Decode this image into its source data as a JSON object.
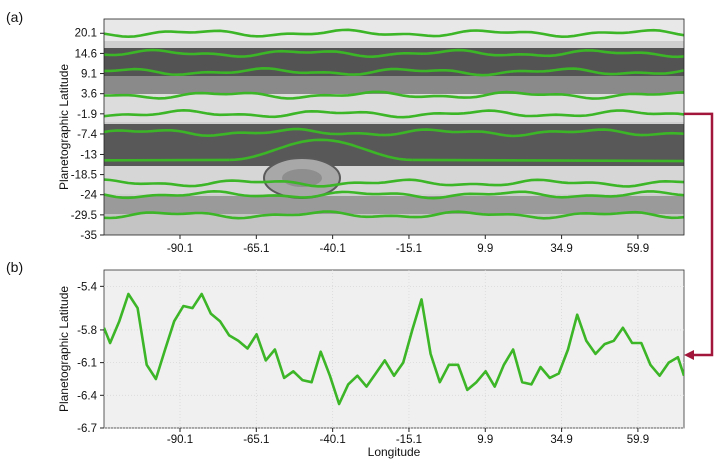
{
  "panel_labels": {
    "a": "(a)",
    "b": "(b)"
  },
  "colors": {
    "trace": "#3cb527",
    "connector": "#a1163a",
    "panel_b_bg": "#f0f0f0",
    "grid": "#d8d8d8"
  },
  "chart_data": [
    {
      "type": "image",
      "panel": "(a)",
      "description_visible": "Grayscale cylindrical map of Jupiter cloud bands with green traced latitude contours",
      "ylabel": "Planetographic Latitude",
      "xlabel": "",
      "yticks": [
        "20.1",
        "14.6",
        "9.1",
        "3.6",
        "-1.9",
        "-7.4",
        "-13",
        "-18.5",
        "-24",
        "-29.5",
        "-35"
      ],
      "xticks": [
        "-90.1",
        "-65.1",
        "-40.1",
        "-15.1",
        "9.9",
        "34.9",
        "59.9"
      ],
      "xlim": [
        -115,
        75
      ],
      "ylim": [
        -35,
        24
      ],
      "contour_latitudes": [
        20.1,
        14.6,
        9.6,
        3.2,
        -1.9,
        -7.0,
        -20.8,
        -24.0,
        -29.5
      ],
      "red_spot_center": {
        "lon": -44,
        "lat": -19.5
      }
    },
    {
      "type": "line",
      "panel": "(b)",
      "ylabel": "Planetographic Latitude",
      "xlabel": "Longitude",
      "yticks": [
        "-5.4",
        "-5.8",
        "-6.1",
        "-6.4",
        "-6.7"
      ],
      "xticks": [
        "-90.1",
        "-65.1",
        "-40.1",
        "-15.1",
        "9.9",
        "34.9",
        "59.9"
      ],
      "xlim": [
        -115,
        75
      ],
      "ylim": [
        -6.7,
        -5.25
      ],
      "grid": true,
      "series": [
        {
          "x": [
            -115,
            -113,
            -110,
            -107,
            -104,
            -101,
            -98,
            -95,
            -92,
            -89,
            -86,
            -83,
            -80,
            -77,
            -74,
            -71,
            -68,
            -65,
            -62,
            -59,
            -56,
            -53,
            -50,
            -47,
            -44,
            -41,
            -38,
            -35,
            -32,
            -29,
            -26,
            -23,
            -20,
            -17,
            -14,
            -11,
            -8,
            -5,
            -2,
            1,
            4,
            7,
            10,
            13,
            16,
            19,
            22,
            25,
            28,
            31,
            34,
            37,
            40,
            43,
            46,
            49,
            52,
            55,
            58,
            61,
            64,
            67,
            70,
            73,
            75
          ],
          "y": [
            -5.78,
            -5.92,
            -5.72,
            -5.47,
            -5.6,
            -6.12,
            -6.25,
            -5.98,
            -5.72,
            -5.58,
            -5.6,
            -5.47,
            -5.65,
            -5.72,
            -5.85,
            -5.9,
            -5.97,
            -5.84,
            -6.08,
            -5.98,
            -6.24,
            -6.18,
            -6.26,
            -6.28,
            -6.0,
            -6.22,
            -6.48,
            -6.3,
            -6.22,
            -6.32,
            -6.2,
            -6.08,
            -6.22,
            -6.1,
            -5.8,
            -5.52,
            -6.02,
            -6.28,
            -6.12,
            -6.12,
            -6.35,
            -6.28,
            -6.18,
            -6.32,
            -6.12,
            -5.98,
            -6.28,
            -6.3,
            -6.14,
            -6.24,
            -6.2,
            -5.98,
            -5.66,
            -5.9,
            -6.02,
            -5.93,
            -5.9,
            -5.78,
            -5.92,
            -5.92,
            -6.12,
            -6.22,
            -6.1,
            -6.05,
            -6.22
          ]
        }
      ]
    }
  ]
}
